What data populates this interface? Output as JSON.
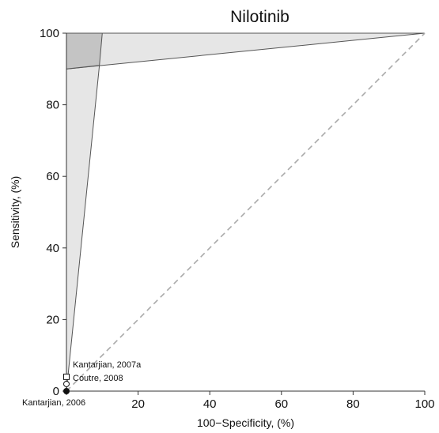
{
  "chart_data": {
    "type": "scatter",
    "title": "Nilotinib",
    "xlabel": "100−Specificity, (%)",
    "ylabel": "Sensitivity, (%)",
    "xlim": [
      0,
      100
    ],
    "ylim": [
      0,
      100
    ],
    "x_ticks": [
      0,
      20,
      40,
      60,
      80,
      100
    ],
    "y_ticks": [
      0,
      20,
      40,
      60,
      80,
      100
    ],
    "x_tick_labels": [
      "",
      "20",
      "40",
      "60",
      "80",
      "100"
    ],
    "y_tick_labels": [
      "0",
      "20",
      "40",
      "60",
      "80",
      "100"
    ],
    "grid": false,
    "points": [
      {
        "label": "Kantarjian, 2007a",
        "x": 0,
        "y": 4,
        "marker": "square-open"
      },
      {
        "label": "Coutre, 2008",
        "x": 0,
        "y": 2,
        "marker": "circle-open"
      },
      {
        "label": "Kantarjian, 2006",
        "x": 0,
        "y": 0,
        "marker": "circle-filled"
      }
    ],
    "regions": [
      {
        "name": "light-region-left",
        "color": "#e6e6e6",
        "vertices": [
          [
            0,
            0
          ],
          [
            0,
            100
          ],
          [
            10,
            100
          ],
          [
            9.2,
            91
          ]
        ]
      },
      {
        "name": "light-region-top",
        "color": "#e6e6e6",
        "vertices": [
          [
            0,
            90
          ],
          [
            0,
            100
          ],
          [
            100,
            100
          ]
        ]
      },
      {
        "name": "dark-overlap",
        "color": "#c4c4c4",
        "vertices": [
          [
            0,
            90
          ],
          [
            0,
            100
          ],
          [
            10,
            100
          ],
          [
            9.2,
            91
          ]
        ]
      }
    ],
    "reference_line": {
      "from": [
        0,
        0
      ],
      "to": [
        100,
        100
      ],
      "style": "dashed",
      "color": "#aaaaaa"
    }
  },
  "colors": {
    "axis": "#333333",
    "boundary": "#555555",
    "reference": "#aaaaaa"
  }
}
